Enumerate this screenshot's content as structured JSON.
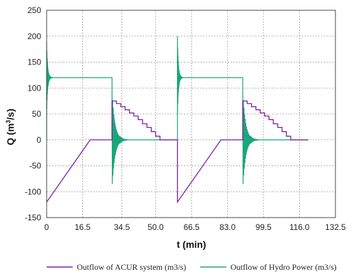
{
  "chart_data": {
    "type": "line",
    "title": "",
    "xlabel": "t (min)",
    "ylabel_main": "Q (m",
    "ylabel_sup": "3",
    "ylabel_tail": "/s)",
    "xlim": [
      0,
      132.5
    ],
    "ylim": [
      -150,
      250
    ],
    "xticks": [
      0,
      16.5,
      34.5,
      50.0,
      66.5,
      83.0,
      99.5,
      116.0,
      132.5
    ],
    "xtick_labels": [
      "0",
      "16.5",
      "34.5",
      "50.0",
      "66.5",
      "83.0",
      "99.5",
      "116.0",
      "132.5"
    ],
    "yticks": [
      -150,
      -100,
      -50,
      0,
      50,
      100,
      150,
      200,
      250
    ],
    "ytick_labels": [
      "-150",
      "-100",
      "-50",
      "0",
      "50",
      "100",
      "150",
      "200",
      "250"
    ],
    "grid": true,
    "legend_position": "bottom",
    "series": [
      {
        "name": "Outflow of ACUR system (m3/s)",
        "color": "#7b1fa2",
        "points": [
          [
            0,
            -120
          ],
          [
            20,
            0
          ],
          [
            30,
            0
          ],
          [
            30,
            75
          ],
          [
            32,
            75
          ],
          [
            32,
            70
          ],
          [
            34,
            70
          ],
          [
            34,
            64
          ],
          [
            36,
            64
          ],
          [
            36,
            58
          ],
          [
            38,
            58
          ],
          [
            38,
            52
          ],
          [
            40,
            52
          ],
          [
            40,
            46
          ],
          [
            42,
            46
          ],
          [
            42,
            39
          ],
          [
            44,
            39
          ],
          [
            44,
            31
          ],
          [
            46,
            31
          ],
          [
            46,
            24
          ],
          [
            48,
            24
          ],
          [
            48,
            16
          ],
          [
            50,
            16
          ],
          [
            50,
            7
          ],
          [
            52,
            7
          ],
          [
            52,
            0
          ],
          [
            60,
            0
          ],
          [
            60,
            -120
          ],
          [
            80,
            0
          ],
          [
            90,
            0
          ],
          [
            90,
            75
          ],
          [
            92,
            75
          ],
          [
            92,
            70
          ],
          [
            94,
            70
          ],
          [
            94,
            64
          ],
          [
            96,
            64
          ],
          [
            96,
            58
          ],
          [
            98,
            58
          ],
          [
            98,
            52
          ],
          [
            100,
            52
          ],
          [
            100,
            46
          ],
          [
            102,
            46
          ],
          [
            102,
            39
          ],
          [
            104,
            39
          ],
          [
            104,
            31
          ],
          [
            106,
            31
          ],
          [
            106,
            24
          ],
          [
            108,
            24
          ],
          [
            108,
            16
          ],
          [
            110,
            16
          ],
          [
            110,
            7
          ],
          [
            112,
            7
          ],
          [
            112,
            0
          ],
          [
            120,
            0
          ]
        ]
      },
      {
        "name": "Outflow of Hydro Power (m3/s)",
        "color": "#1aa67a",
        "segments": [
          {
            "type": "line",
            "points": [
              [
                0,
                0
              ],
              [
                0,
                190
              ]
            ]
          },
          {
            "type": "osc",
            "t0": 0,
            "dur": 2.5,
            "amp": 70,
            "tau": 0.45,
            "period": 0.14,
            "center": 120
          },
          {
            "type": "line",
            "points": [
              [
                2.5,
                120
              ],
              [
                30,
                120
              ],
              [
                30,
                0
              ]
            ]
          },
          {
            "type": "osc",
            "t0": 30,
            "dur": 7,
            "amp": 95,
            "tau": 1.3,
            "period": 0.28,
            "center": 0
          },
          {
            "type": "line",
            "points": [
              [
                37,
                0
              ],
              [
                60,
                0
              ],
              [
                60,
                200
              ]
            ]
          },
          {
            "type": "osc",
            "t0": 60,
            "dur": 2.5,
            "amp": 80,
            "tau": 0.45,
            "period": 0.14,
            "center": 120
          },
          {
            "type": "line",
            "points": [
              [
                62.5,
                120
              ],
              [
                90,
                120
              ],
              [
                90,
                0
              ]
            ]
          },
          {
            "type": "osc",
            "t0": 90,
            "dur": 7,
            "amp": 95,
            "tau": 1.3,
            "period": 0.28,
            "center": 0
          },
          {
            "type": "line",
            "points": [
              [
                97,
                0
              ],
              [
                120,
                0
              ]
            ]
          }
        ]
      }
    ]
  }
}
